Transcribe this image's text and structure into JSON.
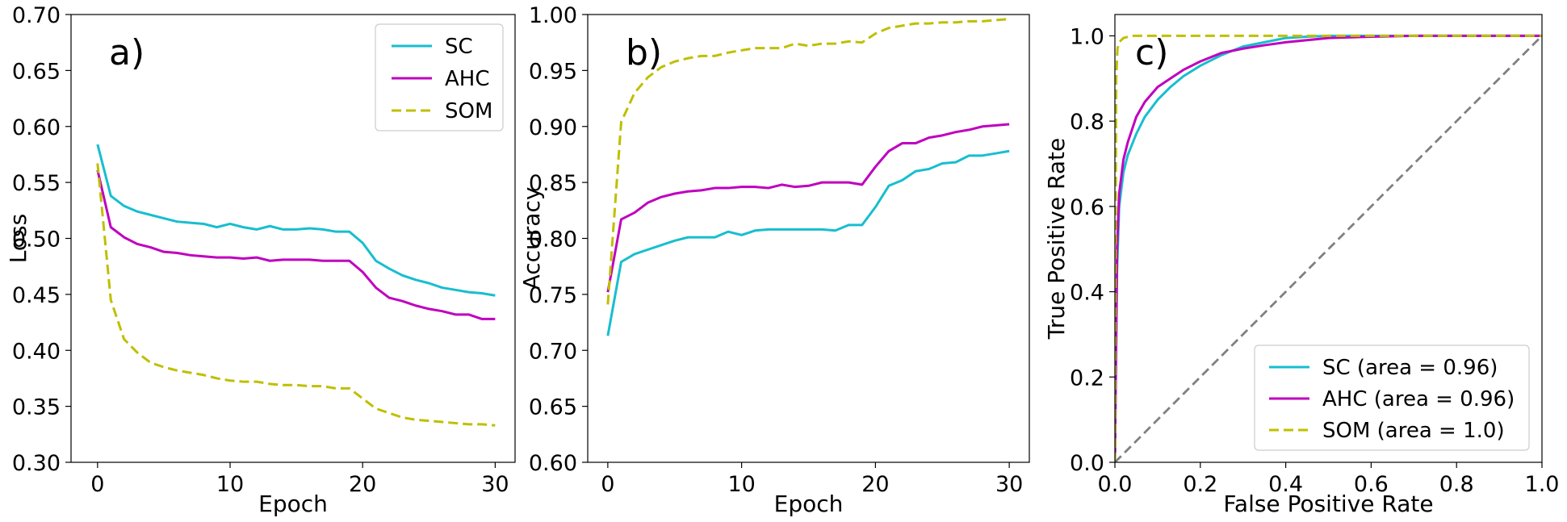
{
  "colors": {
    "SC": "#17becf",
    "AHC": "#bf00bf",
    "SOM": "#bfbf00",
    "diagonal": "#808080"
  },
  "chart_data": [
    {
      "type": "line",
      "panel_label": "a)",
      "xlabel": "Epoch",
      "ylabel": "Loss",
      "xlim": [
        -2,
        31.5
      ],
      "ylim": [
        0.3,
        0.7
      ],
      "xticks": [
        0,
        10,
        20,
        30
      ],
      "xtick_labels": [
        "0",
        "10",
        "20",
        "30"
      ],
      "yticks": [
        0.3,
        0.35,
        0.4,
        0.45,
        0.5,
        0.55,
        0.6,
        0.65,
        0.7
      ],
      "ytick_labels": [
        "0.30",
        "0.35",
        "0.40",
        "0.45",
        "0.50",
        "0.55",
        "0.60",
        "0.65",
        "0.70"
      ],
      "grid": false,
      "legend": "top-right",
      "x": [
        0,
        1,
        2,
        3,
        4,
        5,
        6,
        7,
        8,
        9,
        10,
        11,
        12,
        13,
        14,
        15,
        16,
        17,
        18,
        19,
        20,
        21,
        22,
        23,
        24,
        25,
        26,
        27,
        28,
        29,
        30
      ],
      "series": [
        {
          "name": "SC",
          "style": "solid",
          "values": [
            0.584,
            0.538,
            0.529,
            0.524,
            0.521,
            0.518,
            0.515,
            0.514,
            0.513,
            0.51,
            0.513,
            0.51,
            0.508,
            0.511,
            0.508,
            0.508,
            0.509,
            0.508,
            0.506,
            0.506,
            0.496,
            0.48,
            0.473,
            0.467,
            0.463,
            0.46,
            0.456,
            0.454,
            0.452,
            0.451,
            0.449
          ]
        },
        {
          "name": "AHC",
          "style": "solid",
          "values": [
            0.561,
            0.51,
            0.501,
            0.495,
            0.492,
            0.488,
            0.487,
            0.485,
            0.484,
            0.483,
            0.483,
            0.482,
            0.483,
            0.48,
            0.481,
            0.481,
            0.481,
            0.48,
            0.48,
            0.48,
            0.47,
            0.456,
            0.447,
            0.444,
            0.44,
            0.437,
            0.435,
            0.432,
            0.432,
            0.428,
            0.428
          ]
        },
        {
          "name": "SOM",
          "style": "dashed",
          "values": [
            0.567,
            0.445,
            0.41,
            0.398,
            0.389,
            0.385,
            0.382,
            0.38,
            0.378,
            0.375,
            0.373,
            0.372,
            0.372,
            0.37,
            0.369,
            0.369,
            0.368,
            0.368,
            0.366,
            0.366,
            0.357,
            0.348,
            0.344,
            0.34,
            0.338,
            0.337,
            0.336,
            0.335,
            0.334,
            0.334,
            0.333
          ]
        }
      ]
    },
    {
      "type": "line",
      "panel_label": "b)",
      "xlabel": "Epoch",
      "ylabel": "Accuracy",
      "xlim": [
        -1.5,
        31.5
      ],
      "ylim": [
        0.6,
        1.0
      ],
      "xticks": [
        0,
        10,
        20,
        30
      ],
      "xtick_labels": [
        "0",
        "10",
        "20",
        "30"
      ],
      "yticks": [
        0.6,
        0.65,
        0.7,
        0.75,
        0.8,
        0.85,
        0.9,
        0.95,
        1.0
      ],
      "ytick_labels": [
        "0.60",
        "0.65",
        "0.70",
        "0.75",
        "0.80",
        "0.85",
        "0.90",
        "0.95",
        "1.00"
      ],
      "grid": false,
      "x": [
        0,
        1,
        2,
        3,
        4,
        5,
        6,
        7,
        8,
        9,
        10,
        11,
        12,
        13,
        14,
        15,
        16,
        17,
        18,
        19,
        20,
        21,
        22,
        23,
        24,
        25,
        26,
        27,
        28,
        29,
        30
      ],
      "series": [
        {
          "style": "solid",
          "color_key": "SC",
          "values": [
            0.713,
            0.779,
            0.786,
            0.79,
            0.794,
            0.798,
            0.801,
            0.801,
            0.801,
            0.806,
            0.803,
            0.807,
            0.808,
            0.808,
            0.808,
            0.808,
            0.808,
            0.807,
            0.812,
            0.812,
            0.828,
            0.847,
            0.852,
            0.86,
            0.862,
            0.867,
            0.868,
            0.874,
            0.874,
            0.876,
            0.878
          ]
        },
        {
          "style": "solid",
          "color_key": "AHC",
          "values": [
            0.752,
            0.817,
            0.823,
            0.832,
            0.837,
            0.84,
            0.842,
            0.843,
            0.845,
            0.845,
            0.846,
            0.846,
            0.845,
            0.848,
            0.846,
            0.847,
            0.85,
            0.85,
            0.85,
            0.848,
            0.864,
            0.878,
            0.885,
            0.885,
            0.89,
            0.892,
            0.895,
            0.897,
            0.9,
            0.901,
            0.902
          ]
        },
        {
          "style": "dashed",
          "color_key": "SOM",
          "values": [
            0.741,
            0.904,
            0.93,
            0.944,
            0.953,
            0.958,
            0.961,
            0.963,
            0.963,
            0.966,
            0.968,
            0.97,
            0.97,
            0.97,
            0.974,
            0.972,
            0.974,
            0.974,
            0.976,
            0.975,
            0.983,
            0.988,
            0.99,
            0.992,
            0.992,
            0.993,
            0.993,
            0.994,
            0.994,
            0.995,
            0.996
          ]
        }
      ]
    },
    {
      "type": "line",
      "panel_label": "c)",
      "xlabel": "False Positive Rate",
      "ylabel": "True Positive Rate",
      "xlim": [
        0.0,
        1.0
      ],
      "ylim": [
        0.0,
        1.05
      ],
      "xticks": [
        0.0,
        0.2,
        0.4,
        0.6,
        0.8,
        1.0
      ],
      "xtick_labels": [
        "0.0",
        "0.2",
        "0.4",
        "0.6",
        "0.8",
        "1.0"
      ],
      "yticks": [
        0.0,
        0.2,
        0.4,
        0.6,
        0.8,
        1.0
      ],
      "ytick_labels": [
        "0.0",
        "0.2",
        "0.4",
        "0.6",
        "0.8",
        "1.0"
      ],
      "grid": false,
      "legend": "lower-right",
      "series": [
        {
          "name": "SC (area = 0.96)",
          "color_key": "SC",
          "style": "solid",
          "x": [
            0,
            0.005,
            0.01,
            0.02,
            0.03,
            0.05,
            0.07,
            0.1,
            0.13,
            0.16,
            0.2,
            0.25,
            0.3,
            0.35,
            0.4,
            0.45,
            0.5,
            0.6,
            0.7,
            0.8,
            0.9,
            1.0
          ],
          "y": [
            0,
            0.45,
            0.6,
            0.68,
            0.72,
            0.77,
            0.81,
            0.85,
            0.88,
            0.905,
            0.93,
            0.955,
            0.975,
            0.985,
            0.995,
            0.998,
            1.0,
            1.0,
            1.0,
            1.0,
            1.0,
            1.0
          ]
        },
        {
          "name": "AHC (area = 0.96)",
          "color_key": "AHC",
          "style": "solid",
          "x": [
            0,
            0.005,
            0.01,
            0.02,
            0.03,
            0.05,
            0.07,
            0.1,
            0.13,
            0.16,
            0.2,
            0.25,
            0.3,
            0.35,
            0.4,
            0.45,
            0.5,
            0.6,
            0.7,
            0.8,
            0.9,
            1.0
          ],
          "y": [
            0,
            0.5,
            0.63,
            0.71,
            0.75,
            0.81,
            0.845,
            0.88,
            0.9,
            0.92,
            0.94,
            0.96,
            0.97,
            0.978,
            0.985,
            0.99,
            0.995,
            0.998,
            1.0,
            1.0,
            1.0,
            1.0
          ]
        },
        {
          "name": "SOM (area = 1.0)",
          "color_key": "SOM",
          "style": "dashed",
          "x": [
            0,
            0.003,
            0.006,
            0.01,
            0.02,
            0.04,
            0.06,
            1.0
          ],
          "y": [
            0,
            0.9,
            0.97,
            0.985,
            0.995,
            1.0,
            1.0,
            1.0
          ]
        },
        {
          "color_key": "diagonal",
          "style": "dashed",
          "x": [
            0,
            1.0
          ],
          "y": [
            0,
            1.0
          ]
        }
      ]
    }
  ]
}
